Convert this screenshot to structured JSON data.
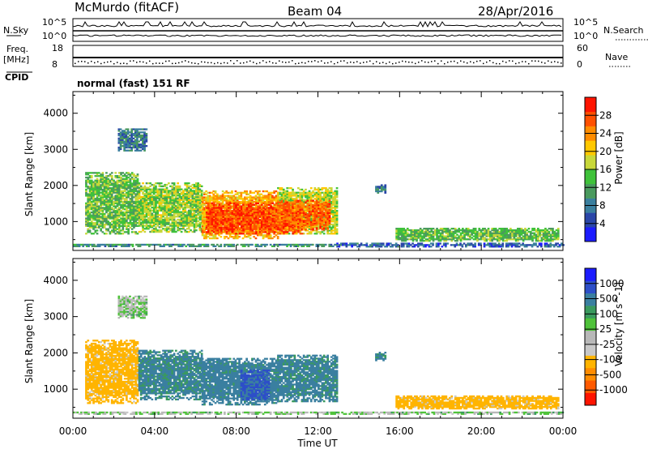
{
  "header": {
    "station": "McMurdo (fitACF)",
    "beam": "Beam 04",
    "date": "28/Apr/2016"
  },
  "noise_panel": {
    "left_label": "N.Sky",
    "right_label": "N.Search",
    "left_ticks": [
      "10^5",
      "10^0"
    ],
    "right_ticks": [
      "10^5",
      "10^0"
    ]
  },
  "freq_panel": {
    "left_label": "Freq.",
    "left_unit": "[MHz]",
    "left_ticks": [
      "18",
      "8"
    ],
    "right_label": "Nave",
    "right_ticks": [
      "60",
      "0"
    ]
  },
  "cpid": {
    "label": "CPID",
    "value": "normal (fast) 151 RF"
  },
  "colors": {
    "power": [
      "#1c1cff",
      "#2a46a8",
      "#3a7f9e",
      "#4a9a5e",
      "#3fc23a",
      "#c8d83a",
      "#ffc800",
      "#ff8c00",
      "#ff5000",
      "#ff1400"
    ],
    "velocity": [
      "#ff1400",
      "#ff5a00",
      "#ff8c00",
      "#ffb400",
      "#c8c8c8",
      "#b8b8b8",
      "#4fc23a",
      "#3a9a5e",
      "#3a7fa0",
      "#2d4fc8",
      "#1c1cff"
    ],
    "grey_scatter": "#b4b4b4"
  },
  "chart_data": [
    {
      "type": "heatmap",
      "title": "",
      "xlabel": "",
      "ylabel": "Slant Range [km]",
      "x_ticks": [
        "00:00",
        "04:00",
        "08:00",
        "12:00",
        "16:00",
        "20:00",
        "00:00"
      ],
      "xlim": [
        0,
        24
      ],
      "ylim": [
        200,
        4600
      ],
      "y_ticks": [
        1000,
        2000,
        3000,
        4000
      ],
      "colorbar_label": "Power [dB]",
      "colorbar_ticks": [
        4,
        8,
        12,
        16,
        20,
        24,
        28
      ],
      "colorbar_range": [
        0,
        32
      ],
      "regions": [
        {
          "t": [
            0.0,
            12.9
          ],
          "r": [
            300,
            360
          ],
          "value": 10
        },
        {
          "t": [
            12.9,
            24.0
          ],
          "r": [
            290,
            380
          ],
          "value": 6
        },
        {
          "t": [
            0.6,
            3.2
          ],
          "r": [
            650,
            2350
          ],
          "value": 14
        },
        {
          "t": [
            3.2,
            6.3
          ],
          "r": [
            700,
            2050
          ],
          "value": 16
        },
        {
          "t": [
            6.3,
            10.0
          ],
          "r": [
            520,
            1850
          ],
          "value": 22
        },
        {
          "t": [
            10.0,
            12.9
          ],
          "r": [
            650,
            1950
          ],
          "value": 18
        },
        {
          "t": [
            6.5,
            11.2
          ],
          "r": [
            650,
            1500
          ],
          "value": 28
        },
        {
          "t": [
            10.0,
            12.6
          ],
          "r": [
            760,
            1560
          ],
          "value": 26
        },
        {
          "t": [
            2.2,
            3.6
          ],
          "r": [
            2950,
            3550
          ],
          "value": 8
        },
        {
          "t": [
            14.8,
            15.3
          ],
          "r": [
            1780,
            2000
          ],
          "value": 8
        },
        {
          "t": [
            15.8,
            23.8
          ],
          "r": [
            450,
            800
          ],
          "value": 14
        }
      ]
    },
    {
      "type": "heatmap",
      "title": "",
      "xlabel": "Time UT",
      "ylabel": "Slant Range [km]",
      "x_ticks": [
        "00:00",
        "04:00",
        "08:00",
        "12:00",
        "16:00",
        "20:00",
        "00:00"
      ],
      "xlim": [
        0,
        24
      ],
      "ylim": [
        200,
        4600
      ],
      "y_ticks": [
        1000,
        2000,
        3000,
        4000
      ],
      "colorbar_label": "Velocity [m s^-1]",
      "colorbar_ticks": [
        "1000",
        "500",
        "100",
        "25",
        "-25",
        "-100",
        "-500",
        "-1000"
      ],
      "regions": [
        {
          "t": [
            0.0,
            24.0
          ],
          "r": [
            300,
            370
          ],
          "value": 0
        },
        {
          "t": [
            0.6,
            3.2
          ],
          "r": [
            600,
            2350
          ],
          "value": -150
        },
        {
          "t": [
            3.2,
            6.3
          ],
          "r": [
            700,
            2050
          ],
          "value": 120
        },
        {
          "t": [
            6.3,
            10.0
          ],
          "r": [
            560,
            1850
          ],
          "value": 150
        },
        {
          "t": [
            10.0,
            12.9
          ],
          "r": [
            650,
            1950
          ],
          "value": 130
        },
        {
          "t": [
            8.2,
            9.6
          ],
          "r": [
            700,
            1500
          ],
          "value": 600
        },
        {
          "t": [
            2.2,
            3.6
          ],
          "r": [
            2950,
            3550
          ],
          "value": 0
        },
        {
          "t": [
            14.8,
            15.3
          ],
          "r": [
            1780,
            2000
          ],
          "value": 120
        },
        {
          "t": [
            15.8,
            23.8
          ],
          "r": [
            450,
            800
          ],
          "value": -150
        }
      ]
    }
  ]
}
